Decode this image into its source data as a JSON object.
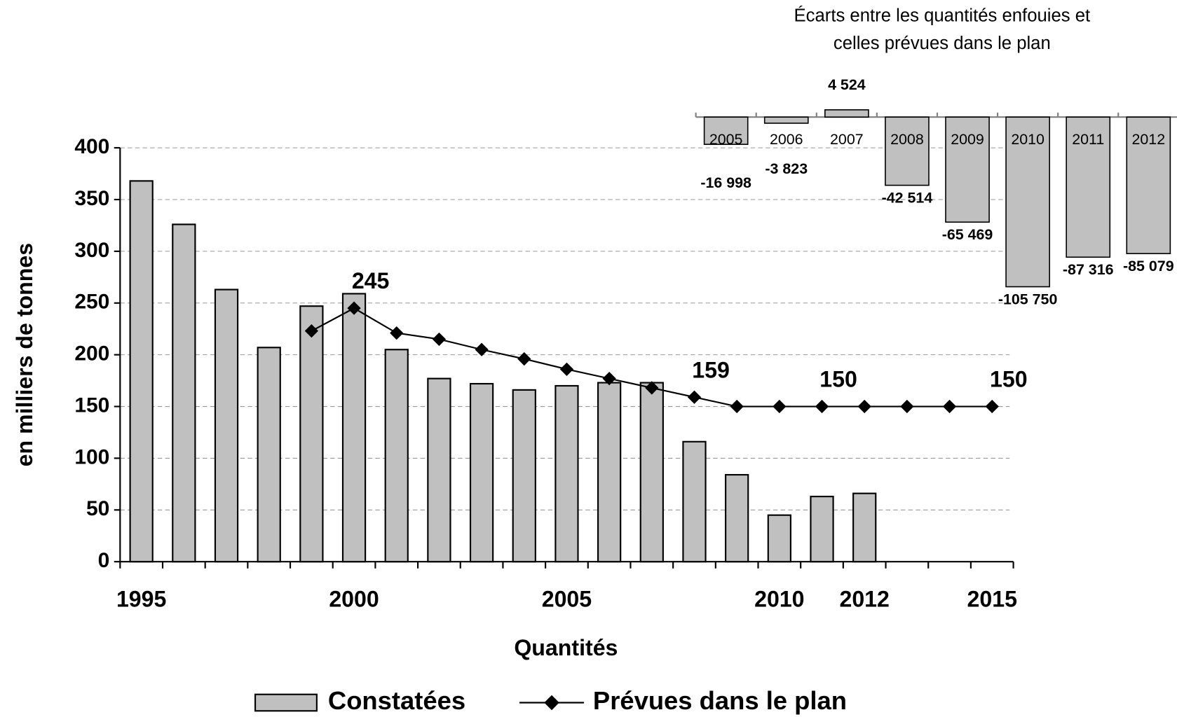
{
  "chart_data": [
    {
      "type": "bar",
      "x_label": "Quantités",
      "y_label": "en milliers de tonnes",
      "categories": [
        "1995",
        null,
        null,
        null,
        null,
        "2000",
        null,
        null,
        null,
        null,
        "2005",
        null,
        null,
        null,
        null,
        "2010",
        null,
        "2012",
        null,
        null,
        "2015"
      ],
      "series": [
        {
          "name": "Constatées",
          "type": "bar",
          "color": "#c0c0c0",
          "values": [
            368,
            326,
            263,
            207,
            247,
            259,
            205,
            177,
            172,
            166,
            170,
            173,
            173,
            116,
            84,
            45,
            63,
            66,
            null,
            null,
            null
          ]
        },
        {
          "name": "Prévues dans le plan",
          "type": "line",
          "color": "#000000",
          "values": [
            null,
            null,
            null,
            null,
            223,
            245,
            221,
            215,
            205,
            196,
            186,
            177,
            168,
            159,
            150,
            150,
            150,
            150,
            150,
            150,
            150
          ],
          "value_labels": [
            null,
            null,
            null,
            null,
            null,
            "245",
            null,
            null,
            null,
            null,
            null,
            null,
            null,
            "159",
            null,
            null,
            "150",
            null,
            null,
            null,
            "150"
          ]
        }
      ],
      "ylim": [
        0,
        400
      ],
      "yticks": [
        0,
        50,
        100,
        150,
        200,
        250,
        300,
        350,
        400
      ],
      "grid": true,
      "legend": "bottom"
    },
    {
      "type": "bar",
      "title": [
        "Écarts entre les quantités enfouies et",
        "celles prévues dans le plan"
      ],
      "categories": [
        "2005",
        "2006",
        "2007",
        "2008",
        "2009",
        "2010",
        "2011",
        "2012"
      ],
      "values": [
        -16998,
        -3823,
        4524,
        -42514,
        -65469,
        -105750,
        -87316,
        -85079
      ],
      "value_labels": [
        "-16 998",
        "-3 823",
        "4 524",
        "-42 514",
        "-65 469",
        "-105 750",
        "-87 316",
        "-85 079"
      ],
      "color": "#c0c0c0",
      "ylim": [
        -110000,
        10000
      ]
    }
  ]
}
